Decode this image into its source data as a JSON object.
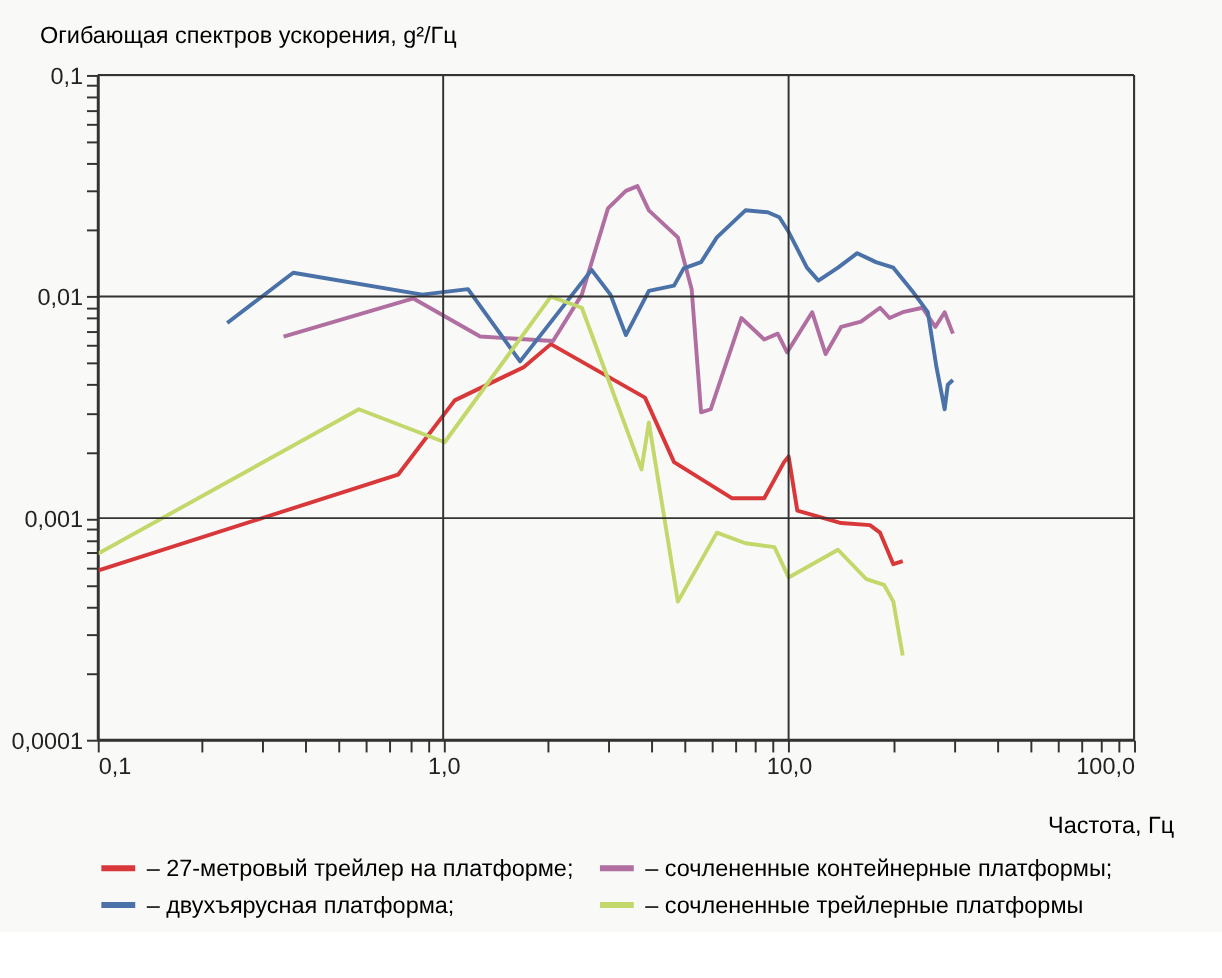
{
  "chart_data": {
    "type": "line",
    "xlabel": "Частота, Гц",
    "ylabel": "Огибающая спектров ускорения, g²/Гц",
    "log": "xy",
    "grid": true,
    "legend": "bottom",
    "line_style": "solid",
    "marker": "none",
    "xlim": [
      0.1,
      100
    ],
    "ylim": [
      0.0001,
      0.1
    ],
    "xticks": [
      {
        "value": 0.1,
        "label": "0,1"
      },
      {
        "value": 0.2,
        "label": null
      },
      {
        "value": 0.3,
        "label": null
      },
      {
        "value": 0.4,
        "label": null
      },
      {
        "value": 0.5,
        "label": null
      },
      {
        "value": 0.6,
        "label": null
      },
      {
        "value": 0.7,
        "label": null
      },
      {
        "value": 0.8,
        "label": null
      },
      {
        "value": 0.9,
        "label": null
      },
      {
        "value": 1,
        "label": "1,0"
      },
      {
        "value": 2,
        "label": null
      },
      {
        "value": 3,
        "label": null
      },
      {
        "value": 4,
        "label": null
      },
      {
        "value": 5,
        "label": null
      },
      {
        "value": 6,
        "label": null
      },
      {
        "value": 7,
        "label": null
      },
      {
        "value": 8,
        "label": null
      },
      {
        "value": 9,
        "label": null
      },
      {
        "value": 10,
        "label": "10,0"
      },
      {
        "value": 20,
        "label": null
      },
      {
        "value": 30,
        "label": null
      },
      {
        "value": 40,
        "label": null
      },
      {
        "value": 50,
        "label": null
      },
      {
        "value": 60,
        "label": null
      },
      {
        "value": 70,
        "label": null
      },
      {
        "value": 80,
        "label": null
      },
      {
        "value": 90,
        "label": null
      },
      {
        "value": 100,
        "label": "100,0"
      }
    ],
    "yticks": [
      {
        "value": 0.0001,
        "label": "0,0001"
      },
      {
        "value": 0.0002,
        "label": null
      },
      {
        "value": 0.0003,
        "label": null
      },
      {
        "value": 0.0004,
        "label": null
      },
      {
        "value": 0.0005,
        "label": null
      },
      {
        "value": 0.0006,
        "label": null
      },
      {
        "value": 0.0007,
        "label": null
      },
      {
        "value": 0.0008,
        "label": null
      },
      {
        "value": 0.0009,
        "label": null
      },
      {
        "value": 0.001,
        "label": "0,001"
      },
      {
        "value": 0.002,
        "label": null
      },
      {
        "value": 0.003,
        "label": null
      },
      {
        "value": 0.004,
        "label": null
      },
      {
        "value": 0.005,
        "label": null
      },
      {
        "value": 0.006,
        "label": null
      },
      {
        "value": 0.007,
        "label": null
      },
      {
        "value": 0.008,
        "label": null
      },
      {
        "value": 0.009,
        "label": null
      },
      {
        "value": 0.01,
        "label": "0,01"
      },
      {
        "value": 0.02,
        "label": null
      },
      {
        "value": 0.03,
        "label": null
      },
      {
        "value": 0.04,
        "label": null
      },
      {
        "value": 0.05,
        "label": null
      },
      {
        "value": 0.06,
        "label": null
      },
      {
        "value": 0.07,
        "label": null
      },
      {
        "value": 0.08,
        "label": null
      },
      {
        "value": 0.09,
        "label": null
      },
      {
        "value": 0.1,
        "label": "0,1"
      }
    ],
    "series": [
      {
        "name": "– 27-метровый трейлер на платформе;",
        "color": "#d9383a",
        "x": [
          0.1,
          0.74,
          1.08,
          1.71,
          2.05,
          3.84,
          4.66,
          6.85,
          8.5,
          9.7,
          10.0,
          10.6,
          14.2,
          17.2,
          18.4,
          20.1,
          21.4
        ],
        "values": [
          0.00058,
          0.00157,
          0.0034,
          0.0048,
          0.0061,
          0.0035,
          0.00179,
          0.00123,
          0.00123,
          0.00179,
          0.0019,
          0.00108,
          0.00095,
          0.00093,
          0.00086,
          0.00062,
          0.00064
        ]
      },
      {
        "name": "– сочлененные контейнерные платформы;",
        "color": "#b06fa0",
        "x": [
          0.345,
          0.82,
          1.28,
          2.08,
          2.52,
          3.0,
          3.38,
          3.65,
          3.94,
          4.78,
          5.24,
          5.58,
          5.95,
          7.3,
          8.5,
          9.3,
          9.9,
          11.7,
          12.8,
          14.2,
          16.2,
          18.4,
          19.6,
          21.4,
          24.4,
          26.6,
          28.3,
          29.9
        ],
        "values": [
          0.0066,
          0.0098,
          0.0066,
          0.0063,
          0.0102,
          0.025,
          0.03,
          0.0315,
          0.0245,
          0.0185,
          0.0108,
          0.003,
          0.0031,
          0.008,
          0.0064,
          0.0068,
          0.0056,
          0.0085,
          0.0055,
          0.0073,
          0.0077,
          0.0089,
          0.008,
          0.0085,
          0.0089,
          0.0073,
          0.0085,
          0.0068
        ]
      },
      {
        "name": "– двухъярусная платформа;",
        "color": "#4a72a8",
        "x": [
          0.237,
          0.368,
          0.87,
          1.18,
          1.67,
          2.69,
          3.05,
          3.38,
          3.94,
          4.66,
          4.97,
          5.58,
          6.2,
          7.5,
          8.7,
          9.4,
          10.0,
          11.3,
          12.2,
          13.9,
          15.8,
          17.9,
          20.1,
          22.8,
          25.3,
          26.8,
          28.3,
          28.9,
          29.9
        ],
        "values": [
          0.0076,
          0.0128,
          0.0102,
          0.0108,
          0.0051,
          0.0132,
          0.0102,
          0.0067,
          0.0106,
          0.0112,
          0.0134,
          0.0143,
          0.0185,
          0.0245,
          0.024,
          0.0228,
          0.0196,
          0.0135,
          0.0118,
          0.0135,
          0.0157,
          0.0143,
          0.0135,
          0.0106,
          0.0085,
          0.0048,
          0.0031,
          0.004,
          0.0042
        ]
      },
      {
        "name": "– сочлененные трейлерные платформы",
        "color": "#c3d86a",
        "x": [
          0.1,
          0.57,
          1.01,
          2.05,
          2.52,
          3.75,
          3.94,
          4.78,
          6.2,
          7.5,
          9.1,
          10.0,
          13.9,
          16.8,
          18.9,
          20.1,
          21.4
        ],
        "values": [
          0.00069,
          0.0031,
          0.0022,
          0.01,
          0.0089,
          0.00166,
          0.0027,
          0.00042,
          0.00086,
          0.00077,
          0.00074,
          0.00054,
          0.00072,
          0.00053,
          0.0005,
          0.00042,
          0.00024
        ]
      }
    ]
  }
}
